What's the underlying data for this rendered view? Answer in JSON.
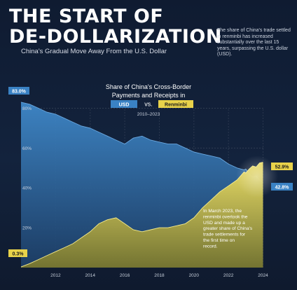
{
  "header": {
    "title_line1": "THE START OF",
    "title_line2": "DE-DOLLARIZATION",
    "subtitle": "China's Gradual Move Away From the U.S. Dollar",
    "note": "The share of China's trade settled in renminbi has increased substantially over the last 15 years, surpassing the U.S. dollar (USD)."
  },
  "colors": {
    "usd": "#3a82c4",
    "rmb": "#e8d24a",
    "background": "#0f1a2e"
  },
  "chart_data": {
    "type": "area",
    "title": "Share of China's Cross-Border Payments and Receipts in",
    "legend": [
      "USD",
      "vs.",
      "Renminbi"
    ],
    "period": "2010–2023",
    "xlim": [
      2010.0,
      2024.1
    ],
    "ylim": [
      0,
      90
    ],
    "x_tick_labels": [
      "2012",
      "2014",
      "2016",
      "2018",
      "2020",
      "2022",
      "2024"
    ],
    "x_ticks": [
      2012,
      2014,
      2016,
      2018,
      2020,
      2022,
      2024
    ],
    "y_tick_labels": [
      "20%",
      "40%",
      "60%",
      "80%"
    ],
    "y_ticks": [
      20,
      40,
      60,
      80
    ],
    "series": [
      {
        "name": "USD",
        "start_label": "83.0%",
        "end_label": "42.8%",
        "x": [
          2010.0,
          2010.5,
          2011.0,
          2011.5,
          2012.0,
          2012.5,
          2013.0,
          2013.5,
          2014.0,
          2014.5,
          2015.0,
          2015.5,
          2016.0,
          2016.5,
          2017.0,
          2017.5,
          2018.0,
          2018.5,
          2019.0,
          2019.5,
          2020.0,
          2020.5,
          2021.0,
          2021.5,
          2022.0,
          2022.5,
          2022.9,
          2023.0,
          2023.2,
          2023.4,
          2023.6,
          2023.8,
          2024.0
        ],
        "y": [
          83.0,
          82.0,
          80.0,
          78.0,
          77.0,
          75.0,
          73.0,
          71.0,
          70.0,
          68.0,
          66.0,
          64.0,
          62.0,
          65.0,
          66.0,
          64.0,
          63.0,
          62.0,
          62.0,
          60.0,
          58.0,
          57.0,
          56.0,
          55.0,
          52.0,
          50.0,
          49.0,
          49.5,
          47.0,
          45.5,
          46.0,
          44.0,
          42.8
        ]
      },
      {
        "name": "Renminbi",
        "start_label": "0.3%",
        "end_label": "52.9%",
        "x": [
          2010.0,
          2010.5,
          2011.0,
          2011.5,
          2012.0,
          2012.5,
          2013.0,
          2013.5,
          2014.0,
          2014.5,
          2015.0,
          2015.5,
          2016.0,
          2016.5,
          2017.0,
          2017.5,
          2018.0,
          2018.5,
          2019.0,
          2019.5,
          2020.0,
          2020.5,
          2021.0,
          2021.5,
          2022.0,
          2022.5,
          2022.9,
          2023.0,
          2023.2,
          2023.4,
          2023.6,
          2023.8,
          2024.0
        ],
        "y": [
          0.3,
          2.0,
          4.0,
          6.0,
          8.0,
          10.0,
          12.0,
          15.0,
          18.0,
          22.0,
          24.0,
          25.0,
          22.0,
          19.0,
          18.0,
          19.0,
          20.0,
          20.0,
          21.0,
          22.0,
          25.0,
          30.0,
          34.0,
          38.0,
          41.0,
          44.0,
          48.0,
          47.5,
          49.5,
          51.0,
          50.5,
          52.5,
          52.9
        ]
      }
    ],
    "annotation": "In March 2023, the renminbi overtook the USD and made up a greater share of China's trade settlements for the first time on record."
  }
}
